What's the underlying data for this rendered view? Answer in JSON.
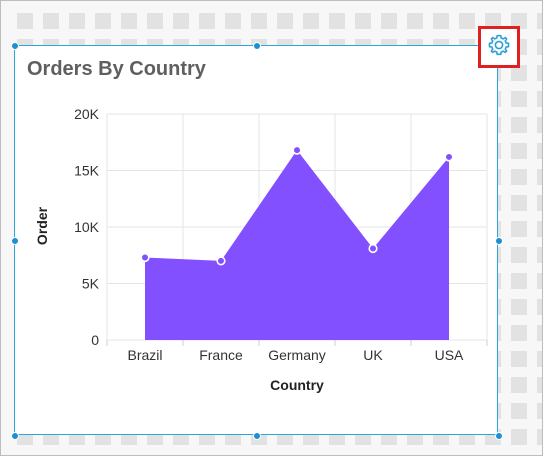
{
  "widget": {
    "title": "Orders By Country",
    "settings_icon": "gear-icon"
  },
  "colors": {
    "series": "#8250ff",
    "selection": "#2aa7d6",
    "highlight": "#e02020"
  },
  "chart_data": {
    "type": "area",
    "categories": [
      "Brazil",
      "France",
      "Germany",
      "UK",
      "USA"
    ],
    "series": [
      {
        "values": [
          7300,
          7000,
          16800,
          8100,
          16200
        ]
      }
    ],
    "ylim": [
      0,
      20000
    ],
    "y_ticks": [
      "0",
      "5K",
      "10K",
      "15K",
      "20K"
    ],
    "y_tick_values": [
      0,
      5000,
      10000,
      15000,
      20000
    ],
    "xlabel": "Country",
    "ylabel": "Order",
    "grid": true,
    "legend": "none"
  }
}
